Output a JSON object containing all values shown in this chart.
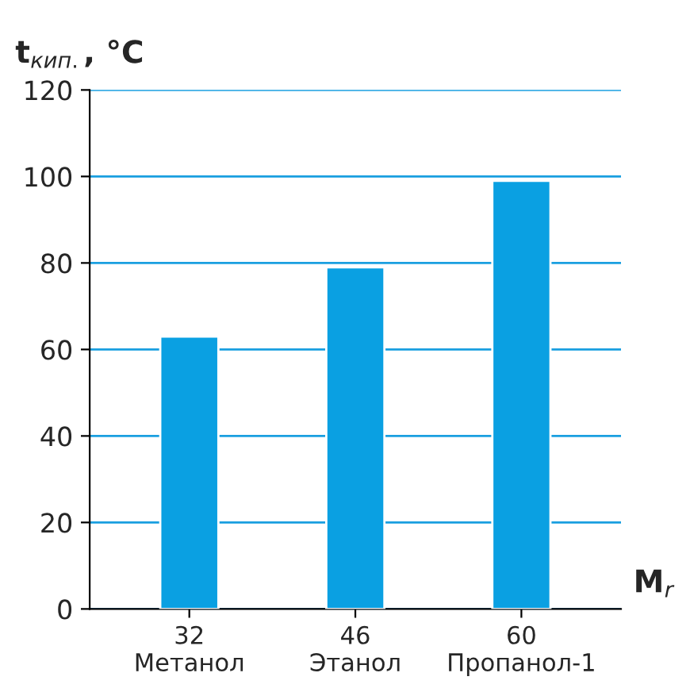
{
  "chart_data": {
    "type": "bar",
    "ylabel": "t$_{кип.}$, °C",
    "xlabel": "M$_{r}$",
    "categories": [
      "32\nМетанол",
      "46\nЭтанол",
      "60\nПропанол-1"
    ],
    "values": [
      63,
      79,
      99
    ],
    "color": "#0aa0e2",
    "ylim": [
      0,
      120
    ],
    "yticks": [
      0,
      20,
      40,
      60,
      80,
      100,
      120
    ],
    "grid": "y",
    "legend": false
  }
}
